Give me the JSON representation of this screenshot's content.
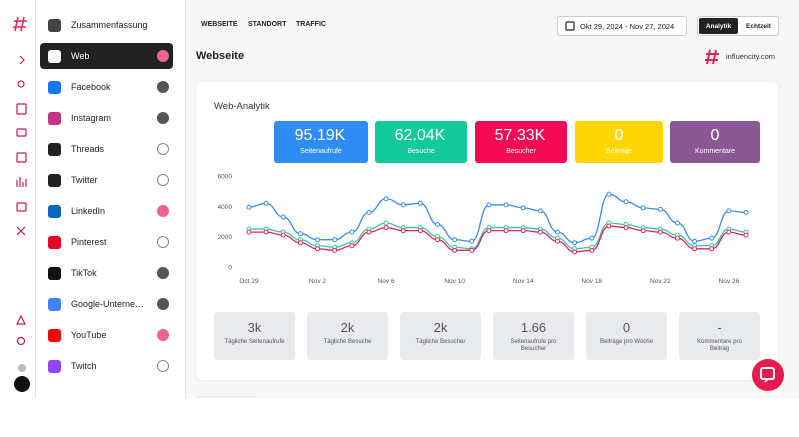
{
  "nav": {
    "tabs": [
      "WEBSEITE",
      "STANDORT",
      "TRAFFIC"
    ],
    "date_range": "Okt 29, 2024 - Nov 27, 2024",
    "views": [
      "Analytik",
      "Echtzeit"
    ]
  },
  "sidebar": {
    "items": [
      "Zusammenfassung",
      "Web",
      "Facebook",
      "Instagram",
      "Threads",
      "Twitter",
      "LinkedIn",
      "Pinterest",
      "TikTok",
      "Google-Unterne…",
      "YouTube",
      "Twitch"
    ]
  },
  "page_title": "Webseite",
  "brand": "influencity.com",
  "card": {
    "title": "Web-Analytik",
    "kpis": [
      {
        "value": "95.19K",
        "label": "Seitenaufrufe",
        "color": "#2f8cf5"
      },
      {
        "value": "62.04K",
        "label": "Besuche",
        "color": "#12c99b"
      },
      {
        "value": "57.33K",
        "label": "Besucher",
        "color": "#f50a55"
      },
      {
        "value": "0",
        "label": "Beiträge",
        "color": "#ffd600"
      },
      {
        "value": "0",
        "label": "Kommentare",
        "color": "#8c5795"
      }
    ],
    "stats": [
      {
        "value": "3k",
        "label": "Tägliche Seitenaufrufe"
      },
      {
        "value": "2k",
        "label": "Tägliche Besuche"
      },
      {
        "value": "2k",
        "label": "Tägliche Besucher"
      },
      {
        "value": "1.66",
        "label": "Seitenaufrufe pro Besucher"
      },
      {
        "value": "0",
        "label": "Beiträge pro Woche"
      },
      {
        "value": "-",
        "label": "Kommentare pro Beitrag"
      }
    ]
  },
  "chart_data": {
    "type": "line",
    "categories": [
      "Oct 29",
      null,
      null,
      null,
      "Nov 2",
      null,
      null,
      null,
      "Nov 6",
      null,
      null,
      null,
      "Nov 10",
      null,
      null,
      null,
      "Nov 14",
      null,
      null,
      null,
      "Nov 18",
      null,
      null,
      null,
      "Nov 22",
      null,
      null,
      null,
      "Nov 26",
      null
    ],
    "series": [
      {
        "color": "#3a8ee6",
        "values": [
          3950,
          4200,
          3300,
          2200,
          1800,
          1800,
          2300,
          3600,
          4500,
          4100,
          4200,
          2800,
          1800,
          1700,
          4100,
          4100,
          3900,
          3700,
          2300,
          1600,
          1900,
          4800,
          4300,
          3900,
          3800,
          2900,
          1700,
          1900,
          3700,
          3600
        ]
      },
      {
        "color": "#3cc79c",
        "values": [
          2500,
          2500,
          2300,
          1800,
          1400,
          1300,
          1600,
          2500,
          2900,
          2600,
          2600,
          2000,
          1300,
          1200,
          2600,
          2600,
          2600,
          2500,
          1900,
          1200,
          1300,
          2900,
          2800,
          2600,
          2500,
          2100,
          1400,
          1400,
          2500,
          2300
        ]
      },
      {
        "color": "#e0245e",
        "values": [
          2300,
          2300,
          2100,
          1600,
          1200,
          1100,
          1400,
          2300,
          2600,
          2400,
          2400,
          1800,
          1100,
          1100,
          2400,
          2400,
          2400,
          2300,
          1700,
          1000,
          1100,
          2700,
          2600,
          2400,
          2300,
          1900,
          1200,
          1200,
          2300,
          2100
        ]
      }
    ],
    "ylim": [
      0,
      6000
    ],
    "yticks": [
      0,
      2000,
      4000,
      6000
    ],
    "grid": false
  }
}
